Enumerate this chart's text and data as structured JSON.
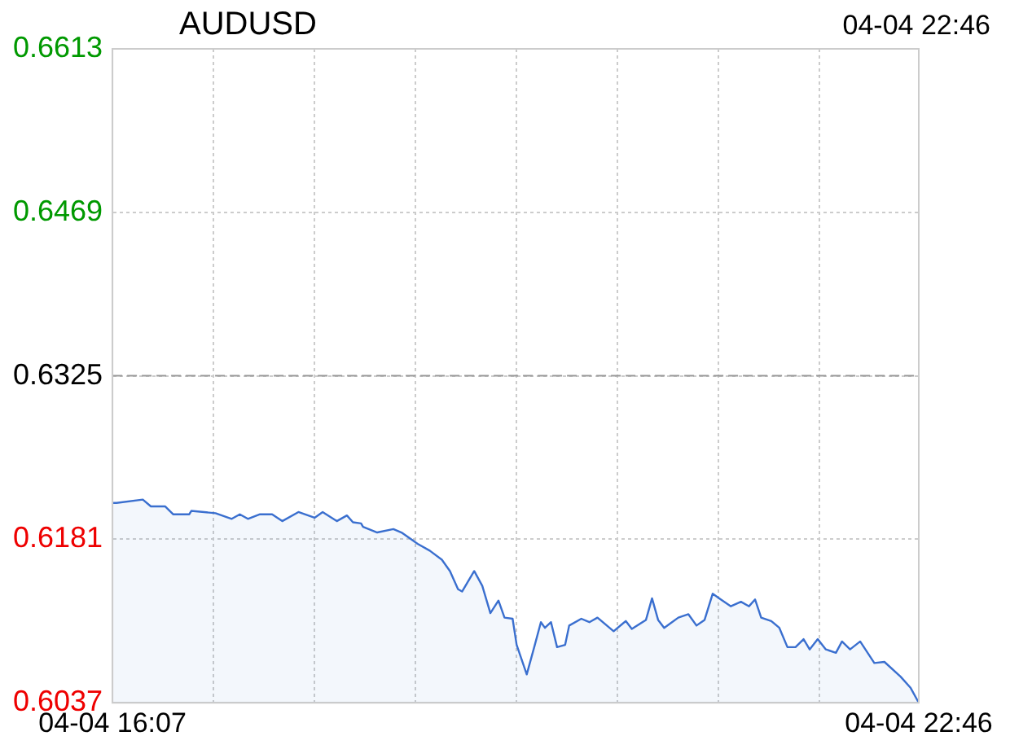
{
  "chart_data": {
    "type": "area",
    "title": "AUDUSD",
    "annotations": [
      "04-04 22:46"
    ],
    "series": [
      {
        "color": "#3a6fcf",
        "x": [
          "--04-04T16:07",
          "--04-04T16:09",
          "--04-04T16:22",
          "--04-04T16:26",
          "--04-04T16:33",
          "--04-04T16:37",
          "--04-04T16:45",
          "--04-04T16:46",
          "--04-04T16:58",
          "--04-04T17:06",
          "--04-04T17:10",
          "--04-04T17:14",
          "--04-04T17:20",
          "--04-04T17:26",
          "--04-04T17:31",
          "--04-04T17:39",
          "--04-04T17:47",
          "--04-04T17:51",
          "--04-04T17:58",
          "--04-04T18:03",
          "--04-04T18:06",
          "--04-04T18:10",
          "--04-04T18:11",
          "--04-04T18:18",
          "--04-04T18:26",
          "--04-04T18:30",
          "--04-04T18:38",
          "--04-04T18:44",
          "--04-04T18:50",
          "--04-04T18:54",
          "--04-04T18:58",
          "--04-04T19:00",
          "--04-04T19:06",
          "--04-04T19:10",
          "--04-04T19:14",
          "--04-04T19:18",
          "--04-04T19:21",
          "--04-04T19:25",
          "--04-04T19:27",
          "--04-04T19:32",
          "--04-04T19:36",
          "--04-04T19:39",
          "--04-04T19:41",
          "--04-04T19:44",
          "--04-04T19:47",
          "--04-04T19:51",
          "--04-04T19:53",
          "--04-04T19:59",
          "--04-04T20:03",
          "--04-04T20:07",
          "--04-04T20:15",
          "--04-04T20:21",
          "--04-04T20:24",
          "--04-04T20:31",
          "--04-04T20:34",
          "--04-04T20:37",
          "--04-04T20:40",
          "--04-04T20:47",
          "--04-04T20:52",
          "--04-04T20:56",
          "--04-04T21:00",
          "--04-04T21:04",
          "--04-04T21:08",
          "--04-04T21:13",
          "--04-04T21:18",
          "--04-04T21:22",
          "--04-04T21:25",
          "--04-04T21:28",
          "--04-04T21:33",
          "--04-04T21:37",
          "--04-04T21:41",
          "--04-04T21:45",
          "--04-04T21:49",
          "--04-04T21:52",
          "--04-04T21:56",
          "--04-04T22:00",
          "--04-04T22:05",
          "--04-04T22:08",
          "--04-04T22:12",
          "--04-04T22:17",
          "--04-04T22:24",
          "--04-04T22:29",
          "--04-04T22:37",
          "--04-04T22:42",
          "--04-04T22:46"
        ],
        "values": [
          0.6213,
          0.6213,
          0.6216,
          0.621,
          0.621,
          0.6203,
          0.6203,
          0.6206,
          0.6204,
          0.6199,
          0.6203,
          0.6199,
          0.6203,
          0.6203,
          0.6197,
          0.6205,
          0.62,
          0.6205,
          0.6197,
          0.6202,
          0.6196,
          0.6195,
          0.6192,
          0.6187,
          0.619,
          0.6187,
          0.6177,
          0.6171,
          0.6163,
          0.6153,
          0.6137,
          0.6135,
          0.6153,
          0.614,
          0.6116,
          0.6127,
          0.6112,
          0.6111,
          0.6088,
          0.6062,
          0.6088,
          0.6108,
          0.6103,
          0.6108,
          0.6086,
          0.6088,
          0.6105,
          0.6111,
          0.6108,
          0.6112,
          0.61,
          0.6109,
          0.6102,
          0.611,
          0.6129,
          0.611,
          0.6103,
          0.6112,
          0.6115,
          0.6105,
          0.611,
          0.6133,
          0.6128,
          0.6122,
          0.6126,
          0.6122,
          0.6128,
          0.6112,
          0.6109,
          0.6103,
          0.6086,
          0.6086,
          0.6093,
          0.6084,
          0.6093,
          0.6084,
          0.6081,
          0.6091,
          0.6084,
          0.6091,
          0.6072,
          0.6073,
          0.606,
          0.605,
          0.6037
        ]
      }
    ],
    "xlim": [
      "--04-04T16:07",
      "--04-04T22:46"
    ],
    "xticks": [
      {
        "value": "--04-04T16:07",
        "label": "04-04 16:07"
      },
      {
        "value": "--04-04T16:57",
        "label": null
      },
      {
        "value": "--04-04T17:47",
        "label": null
      },
      {
        "value": "--04-04T18:37",
        "label": null
      },
      {
        "value": "--04-04T19:27",
        "label": null
      },
      {
        "value": "--04-04T20:17",
        "label": null
      },
      {
        "value": "--04-04T21:07",
        "label": null
      },
      {
        "value": "--04-04T21:57",
        "label": null
      },
      {
        "value": "--04-04T22:46",
        "label": "04-04 22:46"
      }
    ],
    "ylim": [
      0.6037,
      0.6613
    ],
    "yticks": [
      0.6037,
      0.6181,
      0.6325,
      0.6469,
      0.6613
    ],
    "ref_lines": [
      {
        "axis": "y",
        "value": 0.6325,
        "color": "#999999",
        "line_style": "dashed"
      }
    ],
    "grid": true,
    "legend": false,
    "marker": "none",
    "line_style": "solid"
  }
}
